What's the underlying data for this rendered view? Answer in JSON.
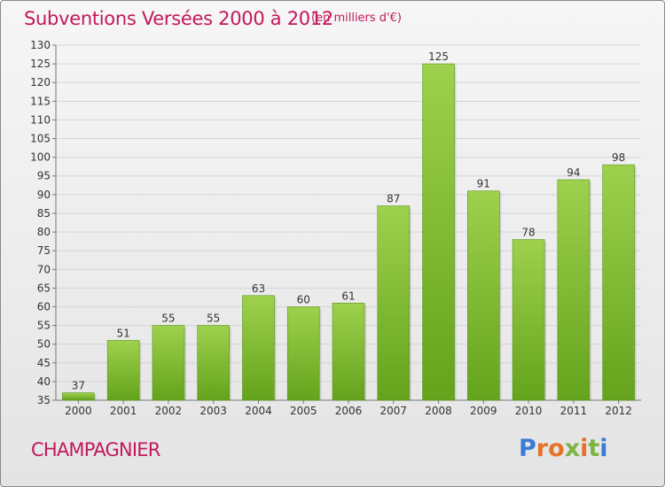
{
  "header": {
    "title": "Subventions Versées 2000 à 2012",
    "subtitle": "(en milliers d'€)"
  },
  "footer": {
    "commune": "CHAMPAGNIER",
    "logo_text": "Proxiti",
    "logo_letters": [
      {
        "ch": "P",
        "color": "#3a7bd5"
      },
      {
        "ch": "r",
        "color": "#e5732b"
      },
      {
        "ch": "o",
        "color": "#e5732b"
      },
      {
        "ch": "x",
        "color": "#7cb342"
      },
      {
        "ch": "i",
        "color": "#e5732b"
      },
      {
        "ch": "t",
        "color": "#7cb342"
      },
      {
        "ch": "i",
        "color": "#3a7bd5"
      }
    ]
  },
  "colors": {
    "title": "#c2185b",
    "bar_light": "#9ed14d",
    "bar_dark": "#64a31c",
    "grid": "#d4d4d4"
  },
  "chart_data": {
    "type": "bar",
    "categories": [
      "2000",
      "2001",
      "2002",
      "2003",
      "2004",
      "2005",
      "2006",
      "2007",
      "2008",
      "2009",
      "2010",
      "2011",
      "2012"
    ],
    "values": [
      37,
      51,
      55,
      55,
      63,
      60,
      61,
      87,
      125,
      91,
      78,
      94,
      98
    ],
    "ylim": [
      35,
      130
    ],
    "yticks": [
      35,
      40,
      45,
      50,
      55,
      60,
      65,
      70,
      75,
      80,
      85,
      90,
      95,
      100,
      105,
      110,
      115,
      120,
      125,
      130
    ],
    "grid": true,
    "data_labels": true
  }
}
